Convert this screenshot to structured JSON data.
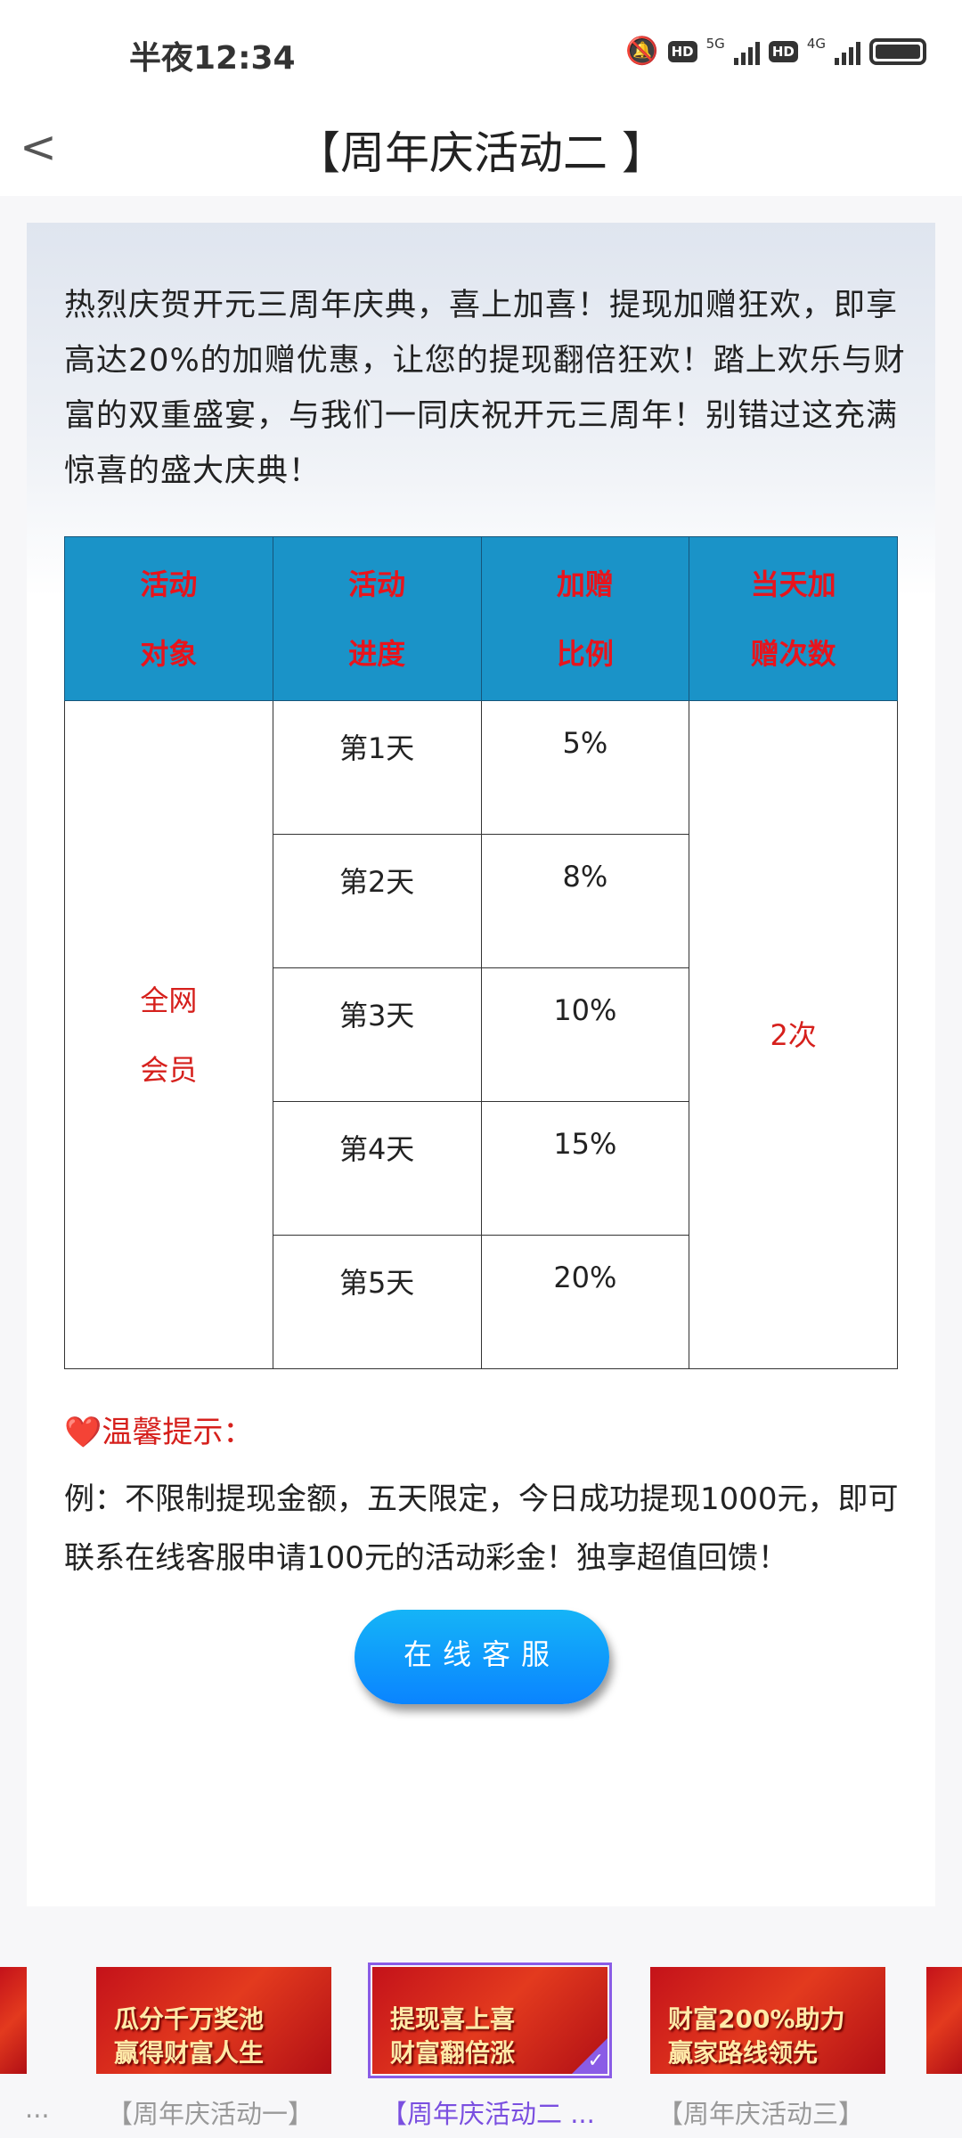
{
  "status_bar": {
    "time": "半夜12:34",
    "network1": "5G",
    "network2": "4G",
    "hd": "HD"
  },
  "header": {
    "back": "<",
    "title": "【周年庆活动二 】"
  },
  "intro": "热烈庆贺开元三周年庆典，喜上加喜！提现加赠狂欢，即享高达20%的加赠优惠，让您的提现翻倍狂欢！踏上欢乐与财富的双重盛宴，与我们一同庆祝开元三周年！别错过这充满惊喜的盛大庆典！",
  "table": {
    "headers": [
      [
        "活动",
        "对象"
      ],
      [
        "活动",
        "进度"
      ],
      [
        "加赠",
        "比例"
      ],
      [
        "当天加",
        "赠次数"
      ]
    ],
    "target": [
      "全网",
      "会员"
    ],
    "rows": [
      {
        "day": "第1天",
        "rate": "5%"
      },
      {
        "day": "第2天",
        "rate": "8%"
      },
      {
        "day": "第3天",
        "rate": "10%"
      },
      {
        "day": "第4天",
        "rate": "15%"
      },
      {
        "day": "第5天",
        "rate": "20%"
      }
    ],
    "times": "2次"
  },
  "tip": {
    "icon": "❤️",
    "label": "温馨提示："
  },
  "example": "例：不限制提现金额，五天限定，今日成功提现1000元，即可联系在线客服申请100元的活动彩金！独享超值回馈！",
  "button": "在线客服",
  "carousel": [
    {
      "label": "...",
      "selected": false
    },
    {
      "label": "【周年庆活动一】",
      "banner": [
        "瓜分千万奖池",
        "赢得财富人生"
      ],
      "selected": false
    },
    {
      "label": "【周年庆活动二 ...",
      "banner": [
        "提现喜上喜",
        "财富翻倍涨"
      ],
      "selected": true
    },
    {
      "label": "【周年庆活动三】",
      "banner": [
        "财富200%助力",
        "赢家路线领先"
      ],
      "selected": false
    }
  ],
  "colors": {
    "header_bg": "#1a93c8",
    "accent_red": "#d6201c",
    "selected": "#8a5ce6",
    "button": "#0a84ff"
  }
}
